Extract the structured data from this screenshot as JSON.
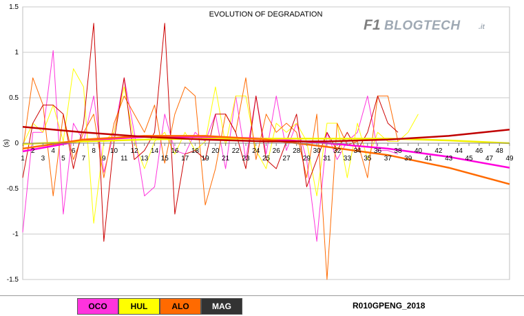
{
  "logo": {
    "brand": "F1",
    "name": "BLOGTECH",
    "suffix": ".it"
  },
  "footer": {
    "legend": [
      {
        "label": "OCO",
        "color": "#ff33dd",
        "text_color": "#000000"
      },
      {
        "label": "HUL",
        "color": "#ffff00",
        "text_color": "#000000"
      },
      {
        "label": "ALO",
        "color": "#ff6a00",
        "text_color": "#000000"
      },
      {
        "label": "MAG",
        "color": "#333333",
        "text_color": "#ffffff"
      }
    ],
    "caption": "R010GPENG_2018"
  },
  "chart_data": {
    "type": "line",
    "title": "EVOLUTION OF DEGRADATION",
    "ylabel": "(s)",
    "xlim": [
      1,
      49
    ],
    "ylim": [
      -1.5,
      1.5
    ],
    "x_ticks": [
      1,
      2,
      3,
      4,
      5,
      6,
      7,
      8,
      9,
      10,
      11,
      12,
      13,
      14,
      15,
      16,
      17,
      18,
      19,
      20,
      21,
      22,
      23,
      24,
      25,
      26,
      27,
      28,
      29,
      30,
      31,
      32,
      33,
      34,
      35,
      36,
      37,
      38,
      39,
      40,
      41,
      42,
      43,
      44,
      45,
      46,
      47,
      48,
      49
    ],
    "y_ticks": [
      -1.5,
      -1,
      -0.5,
      0,
      0.5,
      1,
      1.5
    ],
    "y_tick_labels": [
      "-1.5",
      "-1",
      "-0.5",
      "0",
      "0.5",
      "1",
      "1.5"
    ],
    "grid": "horizontal",
    "series": [
      {
        "name": "OCO",
        "color": "#ff33dd",
        "width": 1,
        "x": [
          1,
          2,
          3,
          4,
          5,
          6,
          7,
          8,
          9,
          10,
          11,
          12,
          13,
          14,
          15,
          16,
          17,
          18,
          19,
          20,
          21,
          22,
          23,
          24,
          25,
          26,
          27,
          28,
          29,
          30,
          31,
          32,
          33,
          34,
          35,
          36,
          37,
          38
        ],
        "y": [
          -0.98,
          0.12,
          0.12,
          1.02,
          -0.78,
          0.22,
          0.02,
          0.52,
          -0.32,
          0.12,
          0.72,
          0.12,
          -0.58,
          -0.48,
          0.32,
          -0.08,
          -0.12,
          0.12,
          0.02,
          0.32,
          -0.28,
          0.52,
          -0.18,
          0.52,
          -0.12,
          0.52,
          -0.08,
          0.22,
          -0.18,
          -1.08,
          0.12,
          -0.18,
          0.02,
          0.12,
          0.52,
          -0.08,
          -0.08,
          -0.12
        ]
      },
      {
        "name": "HUL",
        "color": "#ffff00",
        "width": 1,
        "x": [
          1,
          2,
          3,
          4,
          5,
          6,
          7,
          8,
          9,
          10,
          11,
          12,
          13,
          14,
          15,
          16,
          17,
          18,
          19,
          20,
          21,
          22,
          23,
          24,
          25,
          26,
          27,
          28,
          29,
          30,
          31,
          32,
          33,
          34,
          35,
          36,
          37,
          38,
          39,
          40
        ],
        "y": [
          -0.02,
          0.22,
          0.12,
          0.42,
          0.02,
          0.82,
          0.62,
          -0.88,
          0.02,
          0.12,
          0.62,
          0.02,
          -0.28,
          0.02,
          0.12,
          -0.12,
          0.12,
          -0.08,
          0.02,
          0.62,
          -0.02,
          0.52,
          0.52,
          -0.08,
          -0.28,
          0.22,
          0.12,
          0.22,
          0.02,
          -0.58,
          0.22,
          0.22,
          -0.38,
          0.22,
          -0.18,
          0.12,
          0.02,
          0.02,
          0.12,
          0.32
        ]
      },
      {
        "name": "ALO",
        "color": "#ff6a00",
        "width": 1,
        "x": [
          1,
          2,
          3,
          4,
          5,
          6,
          7,
          8,
          9,
          10,
          11,
          12,
          13,
          14,
          15,
          16,
          17,
          18,
          19,
          20,
          21,
          22,
          23,
          24,
          25,
          26,
          27,
          28,
          29,
          30,
          31,
          32,
          33,
          34,
          35,
          36,
          37,
          38
        ],
        "y": [
          -0.08,
          0.72,
          0.42,
          -0.58,
          0.32,
          -0.18,
          0.12,
          0.32,
          -0.38,
          0.22,
          0.52,
          0.32,
          0.12,
          0.42,
          -0.22,
          0.32,
          0.62,
          0.52,
          -0.68,
          -0.28,
          0.32,
          0.12,
          0.72,
          -0.18,
          0.32,
          0.12,
          0.22,
          0.12,
          -0.38,
          0.32,
          -1.5,
          0.22,
          -0.02,
          0.02,
          -0.38,
          0.52,
          0.52,
          0.02
        ]
      },
      {
        "name": "MAG",
        "color": "#cc0000",
        "width": 1,
        "x": [
          1,
          2,
          3,
          4,
          5,
          6,
          7,
          8,
          9,
          10,
          11,
          12,
          13,
          14,
          15,
          16,
          17,
          18,
          19,
          20,
          21,
          22,
          23,
          24,
          25,
          26,
          27,
          28,
          29,
          30,
          31,
          32,
          33,
          34,
          35,
          36,
          37,
          38
        ],
        "y": [
          -0.38,
          0.22,
          0.42,
          0.42,
          0.32,
          -0.28,
          0.22,
          1.32,
          -1.08,
          0.02,
          0.72,
          -0.18,
          -0.08,
          0.12,
          1.32,
          -0.78,
          -0.12,
          -0.08,
          -0.18,
          0.32,
          0.32,
          0.12,
          -0.28,
          0.52,
          -0.18,
          -0.28,
          0.02,
          0.32,
          -0.48,
          -0.18,
          0.12,
          -0.08,
          0.12,
          -0.08,
          0.12,
          0.52,
          0.22,
          0.12
        ]
      },
      {
        "name": "OCO trend",
        "color": "#ff00dd",
        "width": 2.5,
        "x": [
          1,
          7,
          13,
          19,
          25,
          31,
          37,
          43,
          49
        ],
        "y": [
          -0.09,
          0.03,
          0.07,
          0.07,
          0.05,
          0.0,
          -0.06,
          -0.15,
          -0.27
        ]
      },
      {
        "name": "HUL trend",
        "color": "#f2f200",
        "width": 2.5,
        "x": [
          1,
          7,
          13,
          19,
          25,
          31,
          37,
          43,
          49
        ],
        "y": [
          -0.01,
          0.02,
          0.04,
          0.05,
          0.05,
          0.05,
          0.05,
          0.03,
          0.0
        ]
      },
      {
        "name": "ALO trend",
        "color": "#ff6a00",
        "width": 2.5,
        "x": [
          1,
          7,
          13,
          19,
          25,
          31,
          37,
          43,
          49
        ],
        "y": [
          -0.06,
          0.04,
          0.08,
          0.08,
          0.04,
          -0.04,
          -0.13,
          -0.27,
          -0.45
        ]
      },
      {
        "name": "MAG trend",
        "color": "#c00000",
        "width": 2.5,
        "x": [
          1,
          7,
          13,
          19,
          25,
          31,
          37,
          43,
          49
        ],
        "y": [
          0.18,
          0.12,
          0.07,
          0.04,
          0.02,
          0.02,
          0.04,
          0.08,
          0.15
        ]
      }
    ]
  }
}
